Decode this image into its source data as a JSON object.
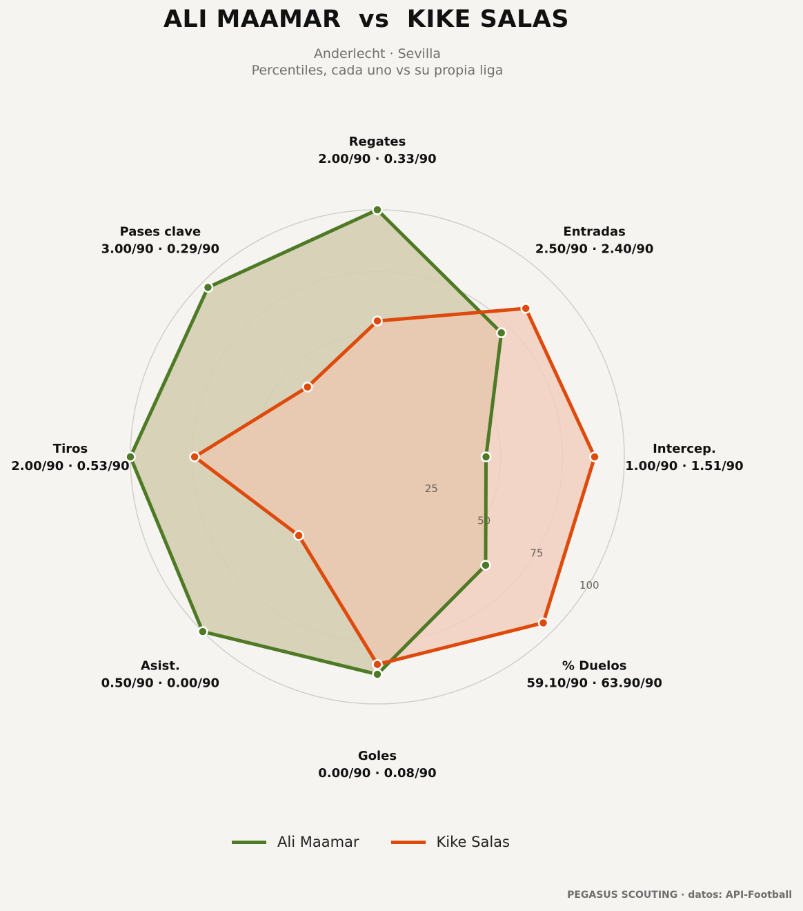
{
  "header": {
    "title": "ALI MAAMAR  vs  KIKE SALAS",
    "subtitle_line1": "Anderlecht · Sevilla",
    "subtitle_line2": "Percentiles, cada uno vs su propia liga"
  },
  "chart_data": {
    "type": "radar",
    "axes": [
      {
        "name": "Regates",
        "stats": "2.00/90 · 0.33/90"
      },
      {
        "name": "Entradas",
        "stats": "2.50/90 · 2.40/90"
      },
      {
        "name": "Intercep.",
        "stats": "1.00/90 · 1.51/90"
      },
      {
        "name": "% Duelos",
        "stats": "59.10/90 · 63.90/90"
      },
      {
        "name": "Goles",
        "stats": "0.00/90 · 0.08/90"
      },
      {
        "name": "Asist.",
        "stats": "0.50/90 · 0.00/90"
      },
      {
        "name": "Tiros",
        "stats": "2.00/90 · 0.53/90"
      },
      {
        "name": "Pases clave",
        "stats": "3.00/90 · 0.29/90"
      }
    ],
    "rlim": [
      0,
      100
    ],
    "rticks": [
      "25",
      "50",
      "75",
      "100"
    ],
    "grid": true,
    "series": [
      {
        "name": "Ali Maamar",
        "color": "#4e7a26",
        "fill": "#d1dbc3",
        "values": [
          100,
          71,
          44,
          62,
          88,
          100,
          100,
          97
        ]
      },
      {
        "name": "Kike Salas",
        "color": "#dd4a0c",
        "fill": "#f1cfbe",
        "values": [
          55,
          85,
          88,
          95,
          84,
          45,
          74,
          40
        ]
      }
    ],
    "legend_position": "bottom-center"
  },
  "footer": {
    "credit": "PEGASUS SCOUTING · datos: API-Football"
  }
}
